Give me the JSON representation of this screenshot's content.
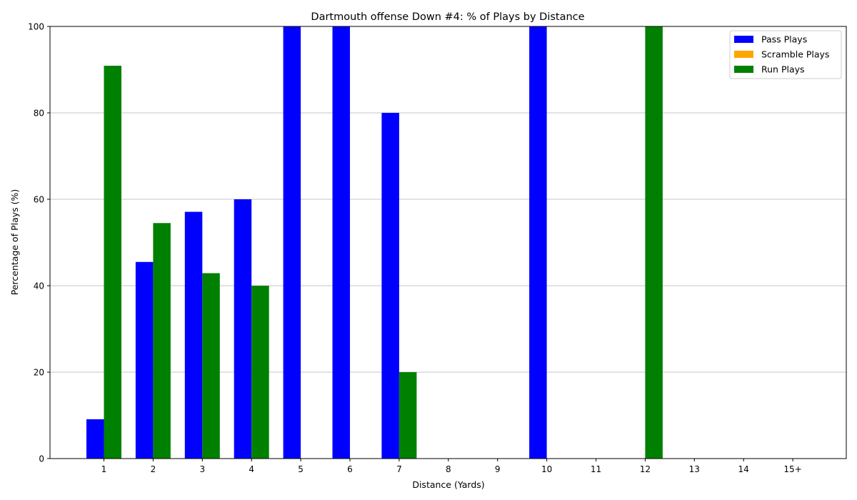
{
  "chart_data": {
    "type": "bar",
    "title": "Dartmouth offense Down #4: % of Plays by Distance",
    "xlabel": "Distance (Yards)",
    "ylabel": "Percentage of Plays (%)",
    "categories": [
      "1",
      "2",
      "3",
      "4",
      "5",
      "6",
      "7",
      "8",
      "9",
      "10",
      "11",
      "12",
      "13",
      "14",
      "15+"
    ],
    "ylim": [
      0,
      100
    ],
    "yticks": [
      0,
      20,
      40,
      60,
      80,
      100
    ],
    "grid": "y-axis",
    "legend_position": "top-right",
    "series": [
      {
        "name": "Pass Plays",
        "color": "#0000ff",
        "values": [
          9.1,
          45.5,
          57.1,
          60,
          100,
          100,
          80,
          0,
          0,
          100,
          0,
          0,
          0,
          0,
          0
        ]
      },
      {
        "name": "Scramble Plays",
        "color": "#ffa500",
        "values": [
          0,
          0,
          0,
          0,
          0,
          0,
          0,
          0,
          0,
          0,
          0,
          0,
          0,
          0,
          0
        ]
      },
      {
        "name": "Run Plays",
        "color": "#008000",
        "values": [
          90.9,
          54.5,
          42.9,
          40,
          0,
          0,
          20,
          0,
          0,
          0,
          0,
          100,
          0,
          0,
          0
        ]
      }
    ]
  }
}
